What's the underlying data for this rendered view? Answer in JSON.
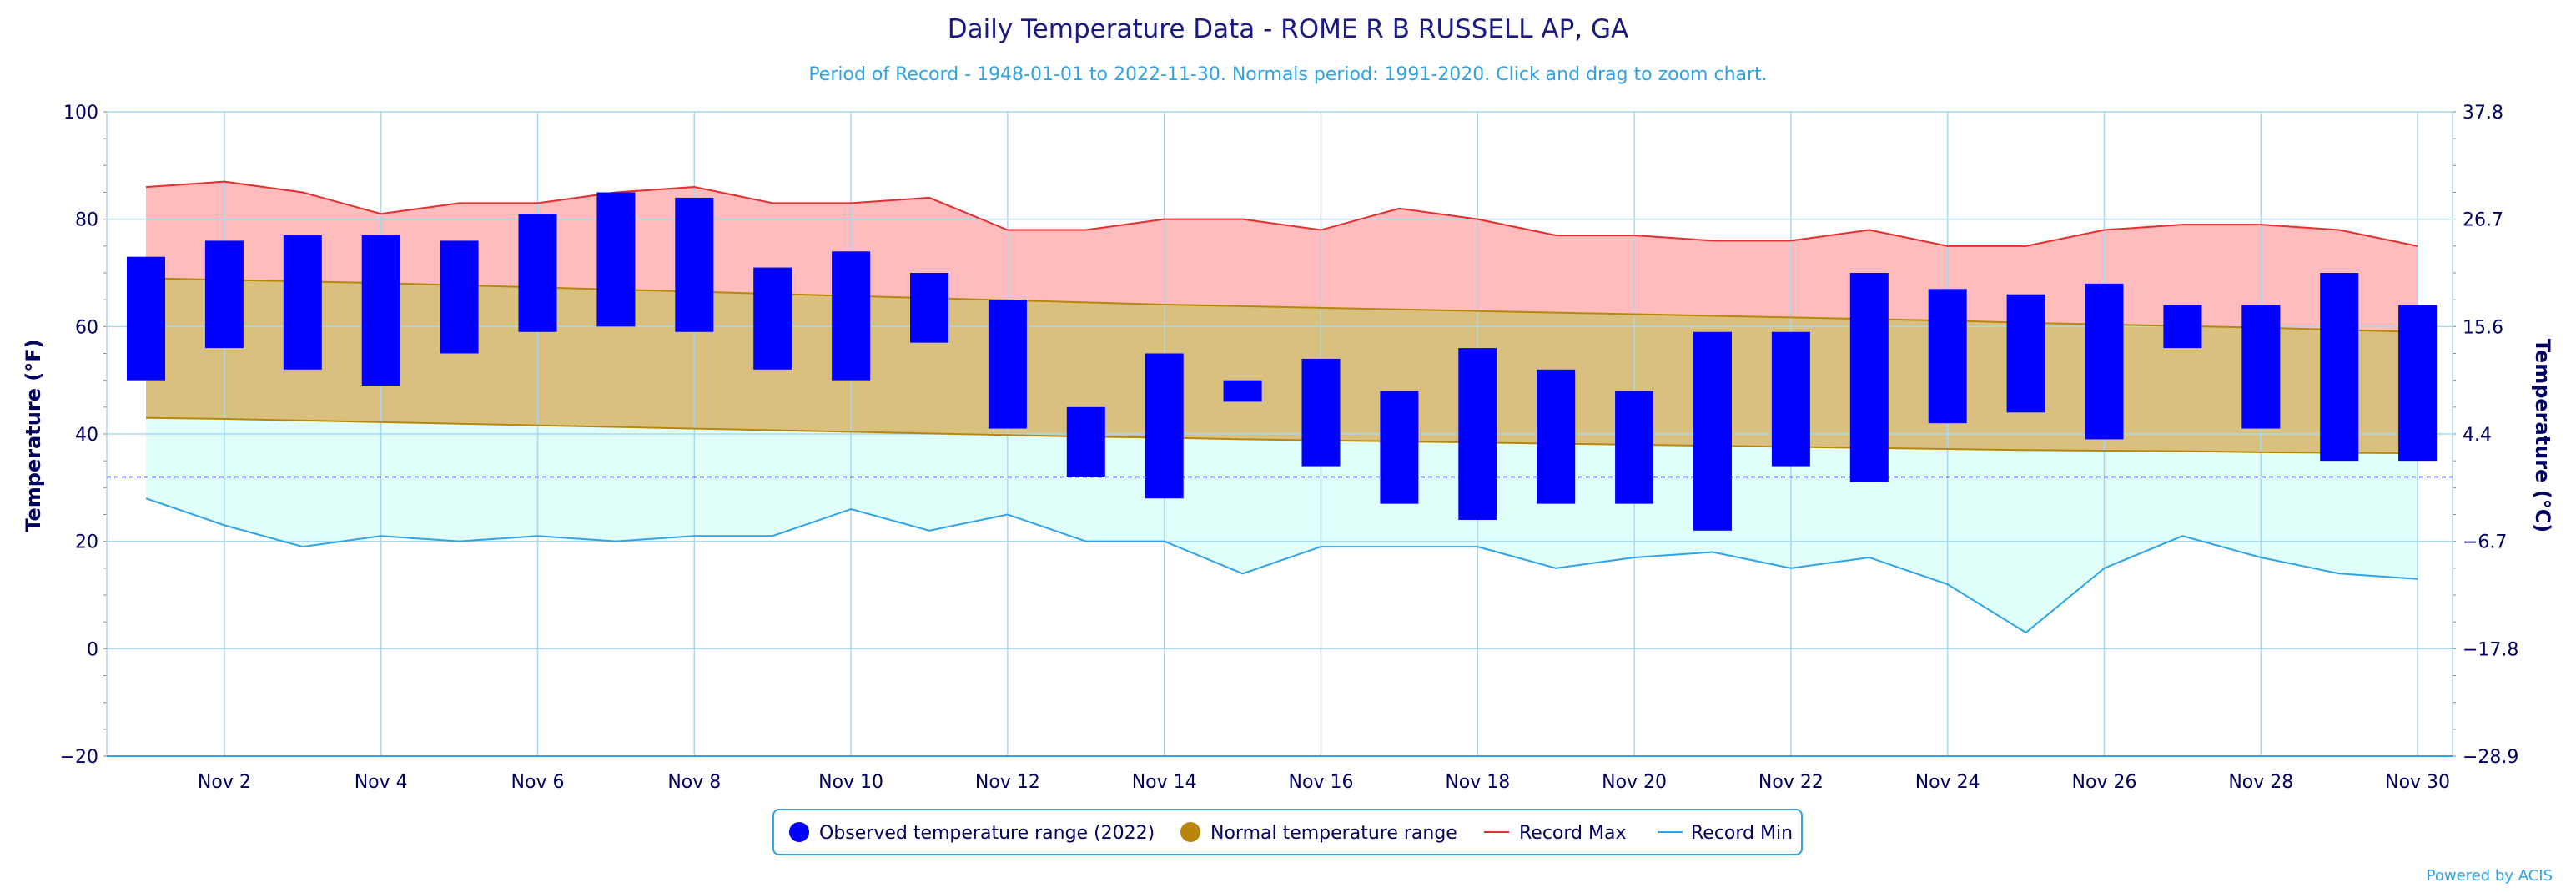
{
  "chart_data": {
    "type": "bar",
    "title": "Daily Temperature Data - ROME R B RUSSELL AP, GA",
    "subtitle": "Period of Record - 1948-01-01 to 2022-11-30. Normals period: 1991-2020. Click and drag to zoom chart.",
    "ylabel": "Temperature (°F)",
    "ylabel_right": "Temperature (°C)",
    "ylim": [
      -20,
      100
    ],
    "yticks": [
      "100",
      "80",
      "60",
      "40",
      "20",
      "0",
      "−20"
    ],
    "ytick_values": [
      100,
      80,
      60,
      40,
      20,
      0,
      -20
    ],
    "yticks_right": [
      "37.8",
      "26.7",
      "15.6",
      "4.4",
      "−6.7",
      "−17.8",
      "−28.9"
    ],
    "days": [
      1,
      2,
      3,
      4,
      5,
      6,
      7,
      8,
      9,
      10,
      11,
      12,
      13,
      14,
      15,
      16,
      17,
      18,
      19,
      20,
      21,
      22,
      23,
      24,
      25,
      26,
      27,
      28,
      29,
      30
    ],
    "xticks": [
      {
        "day": 2,
        "label": "Nov 2"
      },
      {
        "day": 4,
        "label": "Nov 4"
      },
      {
        "day": 6,
        "label": "Nov 6"
      },
      {
        "day": 8,
        "label": "Nov 8"
      },
      {
        "day": 10,
        "label": "Nov 10"
      },
      {
        "day": 12,
        "label": "Nov 12"
      },
      {
        "day": 14,
        "label": "Nov 14"
      },
      {
        "day": 16,
        "label": "Nov 16"
      },
      {
        "day": 18,
        "label": "Nov 18"
      },
      {
        "day": 20,
        "label": "Nov 20"
      },
      {
        "day": 22,
        "label": "Nov 22"
      },
      {
        "day": 24,
        "label": "Nov 24"
      },
      {
        "day": 26,
        "label": "Nov 26"
      },
      {
        "day": 28,
        "label": "Nov 28"
      },
      {
        "day": 30,
        "label": "Nov 30"
      }
    ],
    "freezing_line": 32,
    "series": [
      {
        "name": "Observed temperature range (2022)",
        "color": "#0000ff",
        "high": [
          73,
          76,
          77,
          77,
          76,
          81,
          85,
          84,
          71,
          74,
          70,
          65,
          45,
          55,
          50,
          54,
          48,
          56,
          52,
          48,
          59,
          59,
          70,
          67,
          66,
          68,
          64,
          64,
          70,
          64
        ],
        "low": [
          50,
          56,
          52,
          49,
          55,
          59,
          60,
          59,
          52,
          50,
          57,
          41,
          32,
          28,
          46,
          34,
          27,
          24,
          27,
          27,
          22,
          34,
          31,
          42,
          44,
          39,
          56,
          41,
          35,
          35
        ]
      },
      {
        "name": "Normal temperature range",
        "color": "#b8860b",
        "high": [
          69,
          68.7,
          68.4,
          68.1,
          67.7,
          67.3,
          66.9,
          66.5,
          66.1,
          65.7,
          65.3,
          64.9,
          64.5,
          64.1,
          63.8,
          63.5,
          63.2,
          62.9,
          62.6,
          62.3,
          62,
          61.7,
          61.4,
          61.1,
          60.7,
          60.4,
          60.1,
          59.8,
          59.4,
          59
        ],
        "low": [
          43,
          42.8,
          42.5,
          42.2,
          41.9,
          41.6,
          41.3,
          41,
          40.7,
          40.4,
          40.1,
          39.8,
          39.5,
          39.3,
          39,
          38.8,
          38.6,
          38.4,
          38.2,
          38,
          37.8,
          37.6,
          37.4,
          37.2,
          37,
          36.9,
          36.8,
          36.6,
          36.5,
          36.4
        ]
      },
      {
        "name": "Record Max",
        "color": "#e62e2e",
        "values": [
          86,
          87,
          85,
          81,
          83,
          83,
          85,
          86,
          83,
          83,
          84,
          78,
          78,
          80,
          80,
          78,
          82,
          80,
          77,
          77,
          76,
          76,
          78,
          75,
          75,
          78,
          79,
          79,
          78,
          75
        ]
      },
      {
        "name": "Record Min",
        "color": "#2ea3e6",
        "values": [
          28,
          23,
          19,
          21,
          20,
          21,
          20,
          21,
          21,
          26,
          22,
          25,
          20,
          20,
          14,
          19,
          19,
          19,
          15,
          17,
          18,
          15,
          17,
          12,
          3,
          15,
          21,
          17,
          14,
          13
        ]
      }
    ],
    "legend_position": "bottom-center",
    "credit": "Powered by ACIS"
  }
}
